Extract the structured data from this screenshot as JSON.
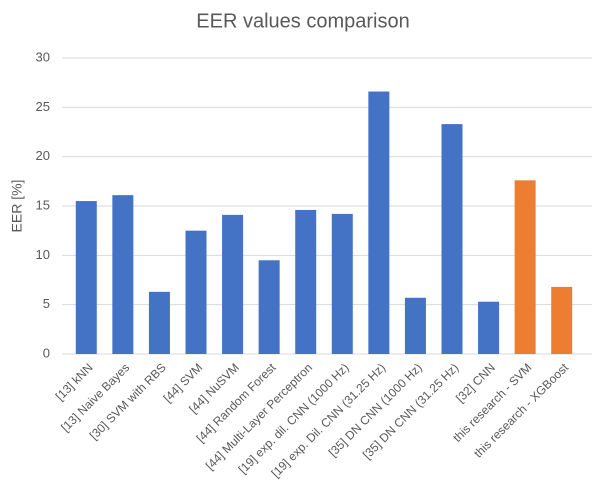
{
  "chart_data": {
    "type": "bar",
    "title": "EER values comparison",
    "y_label": "EER [%]",
    "categories": [
      "[13] kNN",
      "[13] Naive Bayes",
      "[30] SVM with RBS",
      "[44] SVM",
      "[44] NuSVM",
      "[44] Random Forest",
      "[44] Multi-Layer Perceptron",
      "[19] exp. dil. CNN (1000 Hz)",
      "[19] exp. Dil. CNN (31.25 Hz)",
      "[35] DN CNN (1000 Hz)",
      "[35] DN CNN (31.25 Hz)",
      "[32] CNN",
      "this research - SVM",
      "this research - XGBoost"
    ],
    "values": [
      15.5,
      16.1,
      6.3,
      12.5,
      14.1,
      9.5,
      14.6,
      14.2,
      26.6,
      5.7,
      23.3,
      5.3,
      17.6,
      6.8
    ],
    "colors": [
      "#4472c4",
      "#4472c4",
      "#4472c4",
      "#4472c4",
      "#4472c4",
      "#4472c4",
      "#4472c4",
      "#4472c4",
      "#4472c4",
      "#4472c4",
      "#4472c4",
      "#4472c4",
      "#ed7d31",
      "#ed7d31"
    ],
    "ylim": [
      0,
      30
    ],
    "yticks": [
      0,
      5,
      10,
      15,
      20,
      25,
      30
    ],
    "grid": true
  }
}
